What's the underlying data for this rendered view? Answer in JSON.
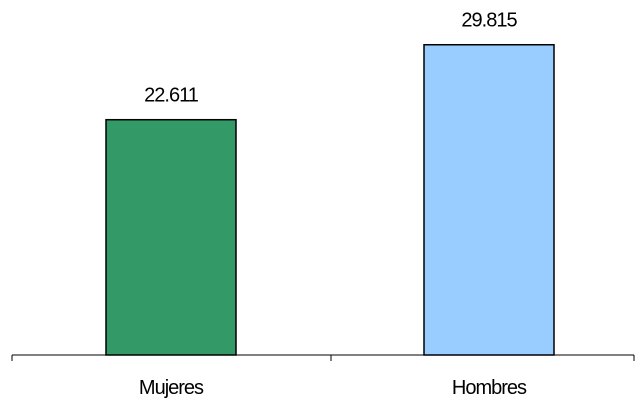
{
  "chart_data": {
    "type": "bar",
    "categories": [
      "Mujeres",
      "Hombres"
    ],
    "values": [
      22611,
      29815
    ],
    "value_labels": [
      "22.611",
      "29.815"
    ],
    "colors": [
      "#339966",
      "#99ccff"
    ],
    "ylim": [
      0,
      32000
    ],
    "grid": false,
    "legend": "none"
  }
}
